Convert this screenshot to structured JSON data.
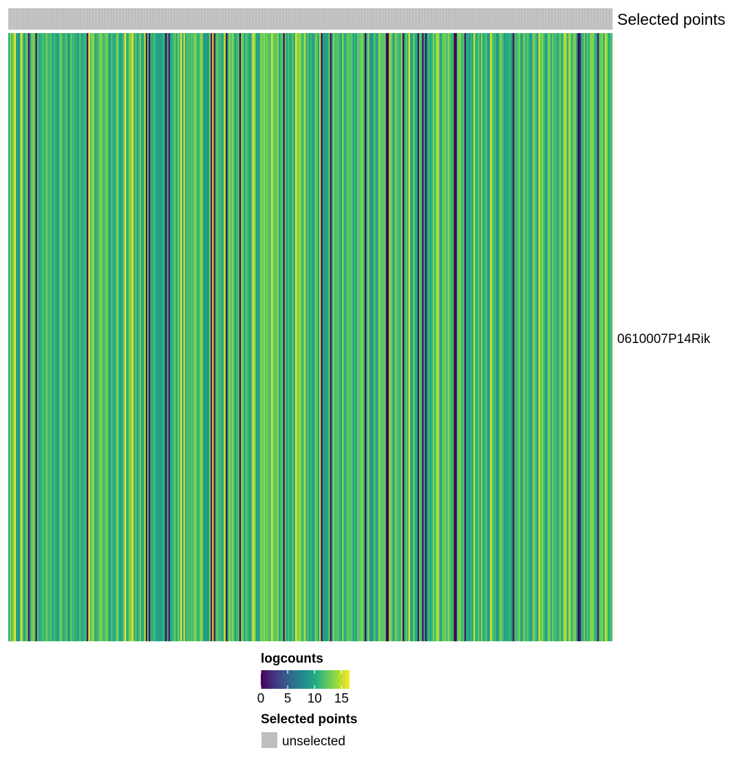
{
  "chart_data": {
    "type": "heatmap",
    "row_labels": [
      "0610007P14Rik"
    ],
    "column_count": 400,
    "value_range": [
      0,
      16
    ],
    "values_note": "",
    "column_annotation": {
      "title": "Selected points",
      "levels": [
        {
          "label": "unselected",
          "color": "#BEBEBE"
        }
      ]
    },
    "legend": {
      "color_title": "logcounts",
      "ticks": [
        0,
        5,
        10,
        15
      ],
      "tick_labels": [
        "0",
        "5",
        "10",
        "15"
      ],
      "annotation_title": "Selected points",
      "annotation_items": [
        "unselected"
      ],
      "placement": "bottom"
    },
    "palette": [
      "#440154",
      "#472D7B",
      "#3B528B",
      "#2C728E",
      "#21908C",
      "#27AD81",
      "#5DC863",
      "#AADC32",
      "#FDE725"
    ]
  }
}
